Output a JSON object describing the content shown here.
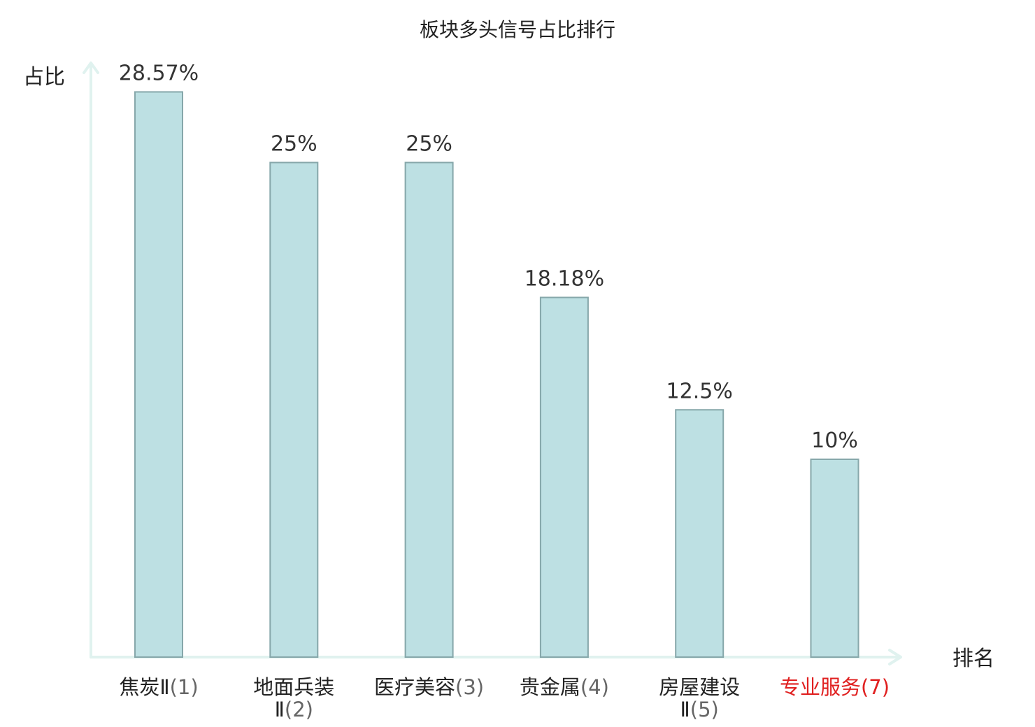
{
  "chart_data": {
    "type": "bar",
    "title": "板块多头信号占比排行",
    "xlabel": "排名",
    "ylabel": "占比",
    "ylim": [
      0,
      30
    ],
    "categories": [
      {
        "name": "焦炭Ⅱ",
        "rank": "(1)",
        "highlight": false
      },
      {
        "name": "地面兵装Ⅱ",
        "rank": "(2)",
        "highlight": false
      },
      {
        "name": "医疗美容",
        "rank": "(3)",
        "highlight": false
      },
      {
        "name": "贵金属",
        "rank": "(4)",
        "highlight": false
      },
      {
        "name": "房屋建设Ⅱ",
        "rank": "(5)",
        "highlight": false
      },
      {
        "name": "专业服务",
        "rank": "(7)",
        "highlight": true
      }
    ],
    "values": [
      28.57,
      25,
      25,
      18.18,
      12.5,
      10
    ],
    "value_labels": [
      "28.57%",
      "25%",
      "25%",
      "18.18%",
      "12.5%",
      "10%"
    ],
    "colors": {
      "bar_fill": "#bde0e3",
      "bar_stroke": "#86a7aa",
      "axis": "#e0f2ef",
      "highlight": "#e02020"
    }
  }
}
